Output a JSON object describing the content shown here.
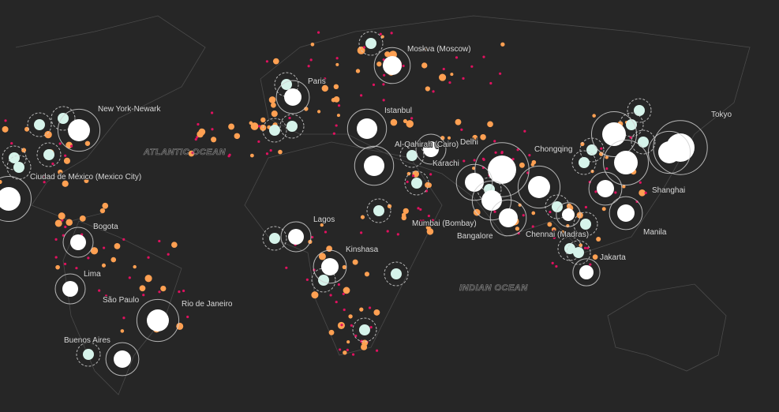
{
  "map": {
    "colors": {
      "background": "#262626",
      "megacity": "#ffffff",
      "large_city": "#d6f3ea",
      "medium_city": "#ffa052",
      "small_city": "#e0115f",
      "ring": "#cfcfcf"
    },
    "oceans": [
      "ATLANTIC OCEAN",
      "INDIAN OCEAN"
    ],
    "city_labels": [
      "Moskva (Moscow)",
      "Paris",
      "Istanbul",
      "New York-Newark",
      "Tokyo",
      "Chongqing",
      "Delhi",
      "Al-Qahirah (Cairo)",
      "Karachi",
      "Shanghai",
      "Ciudad de México (Mexico City)",
      "Lagos",
      "Mumbai (Bombay)",
      "Bangalore",
      "Chennai (Madras)",
      "Manila",
      "Bogota",
      "Kinshasa",
      "Jakarta",
      "Lima",
      "São Paulo",
      "Rio de Janeiro",
      "Buenos Aires"
    ]
  }
}
